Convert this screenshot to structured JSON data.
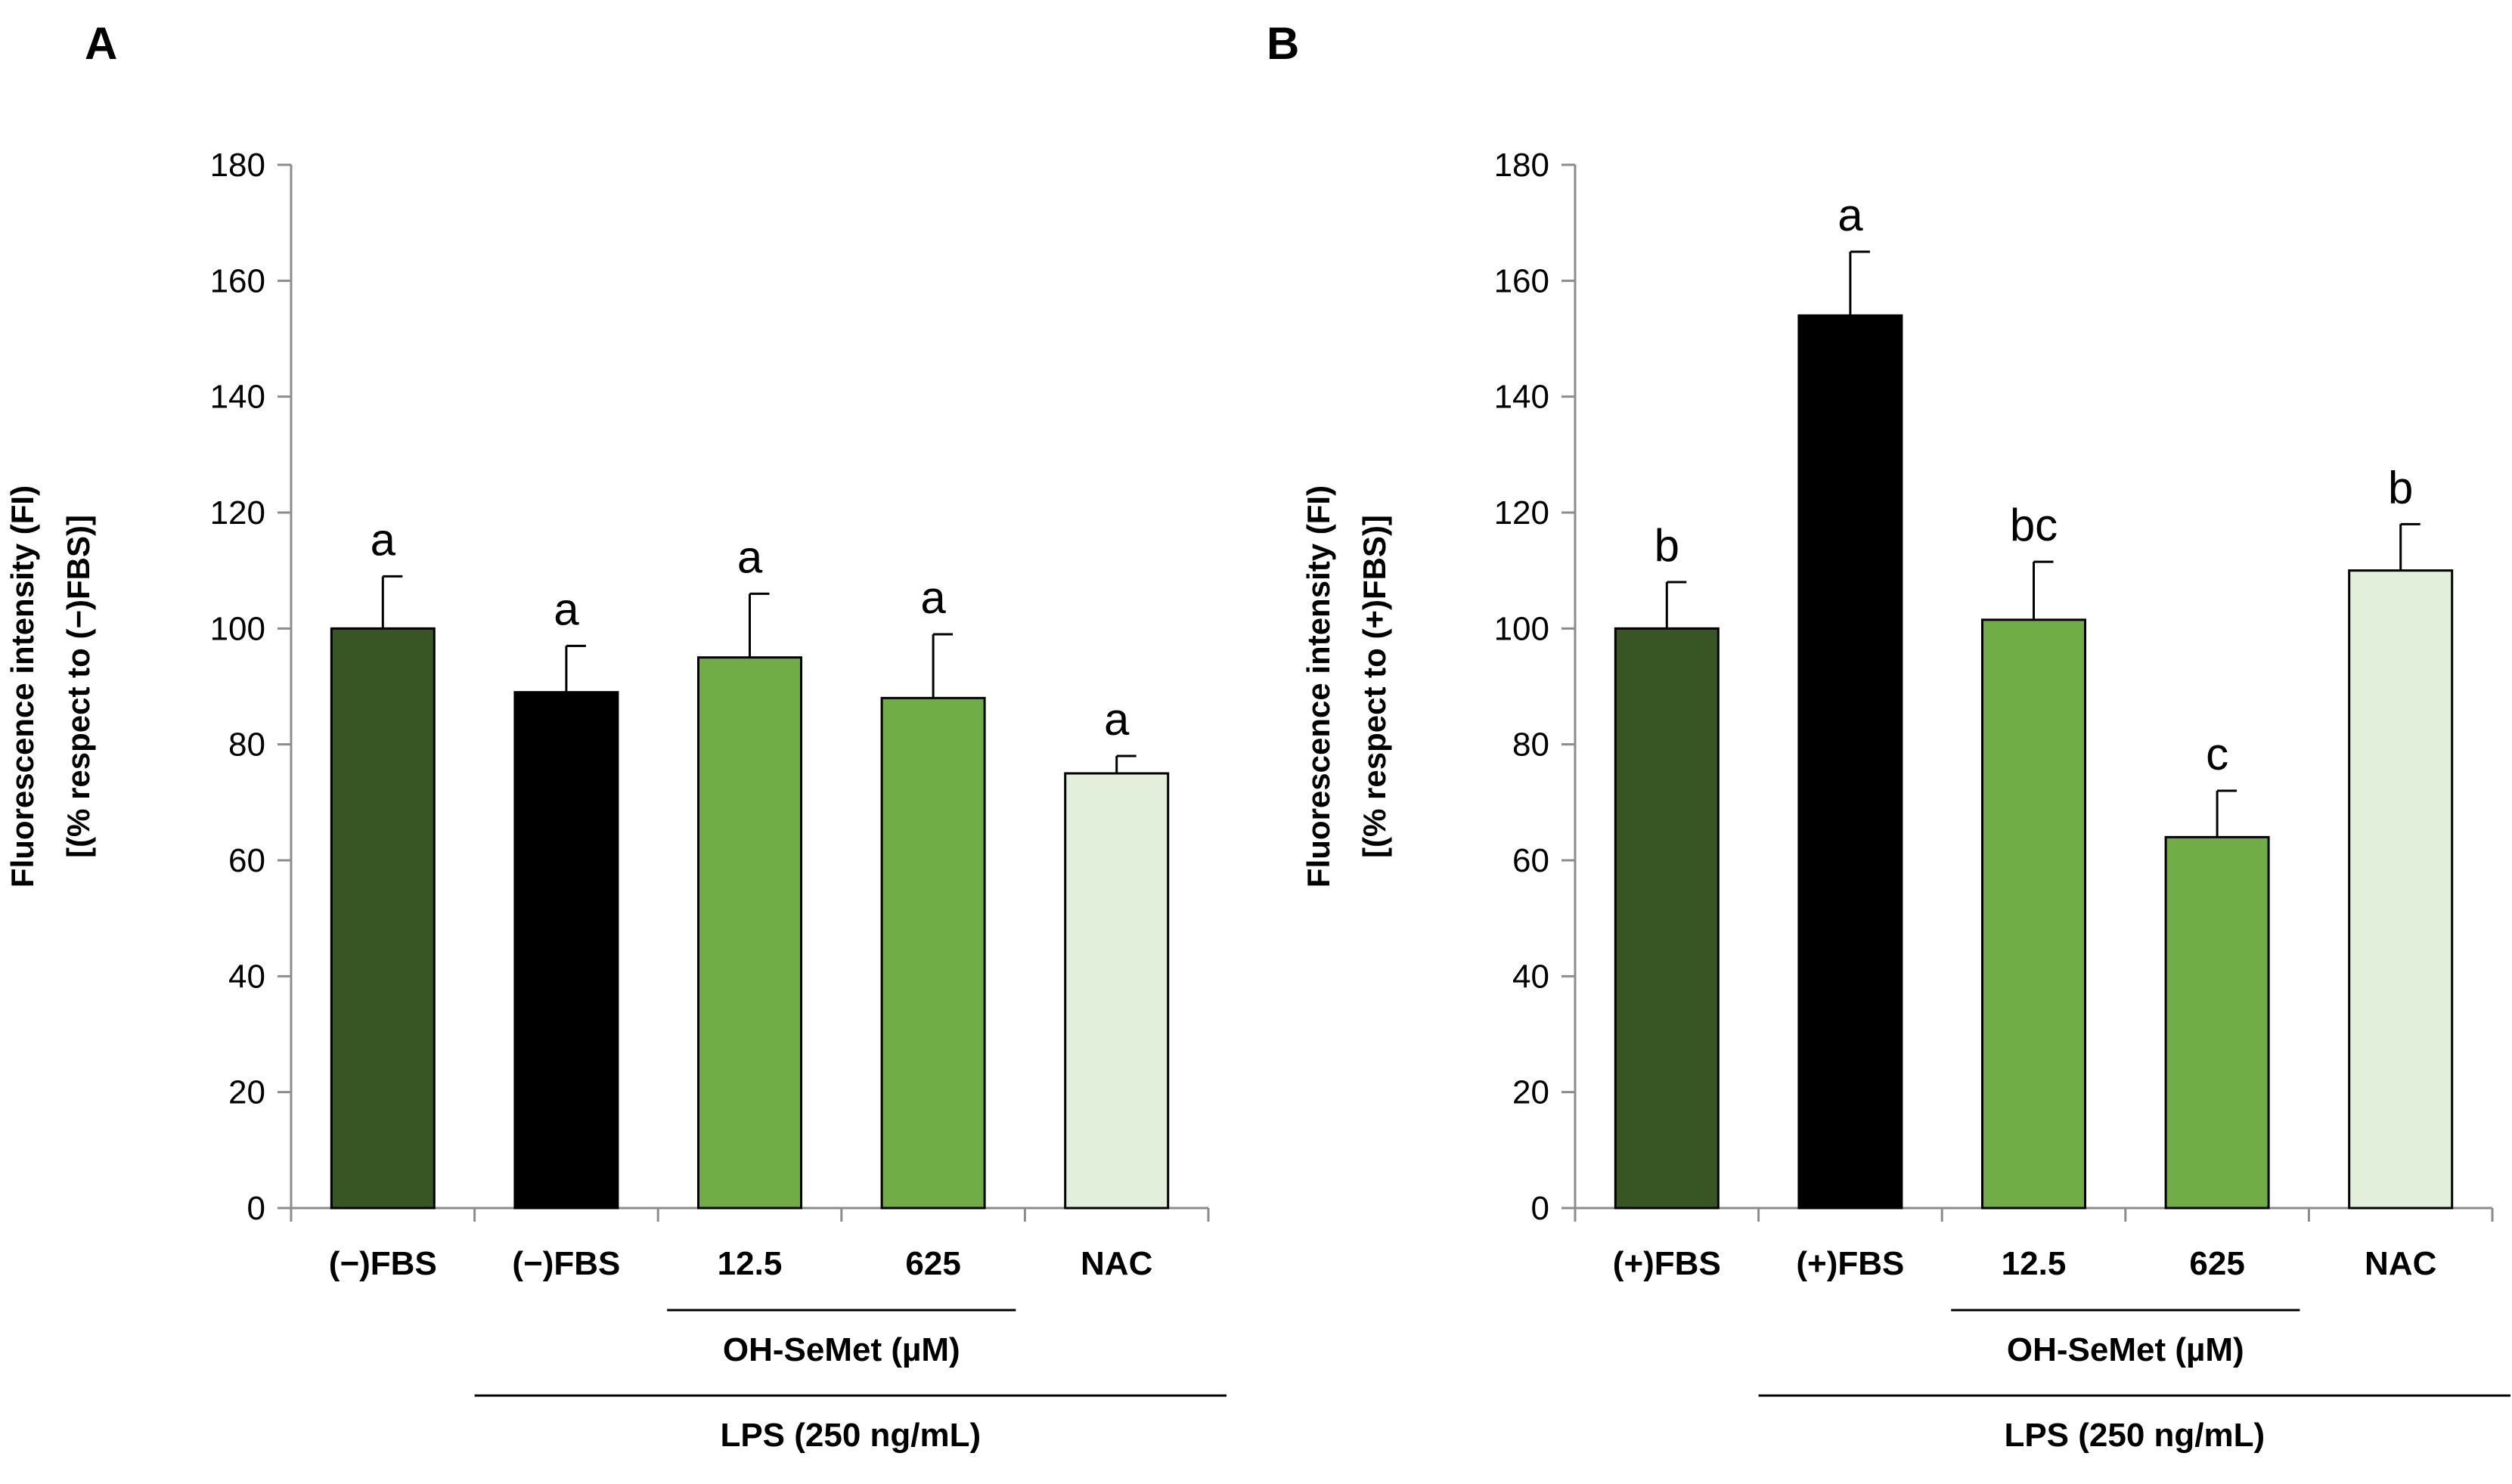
{
  "figure": {
    "panels": [
      "A",
      "B"
    ]
  },
  "chart_data": [
    {
      "panel": "A",
      "type": "bar",
      "title": "",
      "ylabel_line1": "Fluorescence intensity (FI)",
      "ylabel_line2": "[(% respect to (−)FBS)]",
      "xlabel": "",
      "ylim": [
        0,
        180
      ],
      "yticks": [
        0,
        20,
        40,
        60,
        80,
        100,
        120,
        140,
        160,
        180
      ],
      "categories": [
        "(−)FBS",
        "(−)FBS",
        "12.5",
        "625",
        "NAC"
      ],
      "values": [
        100,
        89,
        95,
        88,
        75
      ],
      "errors": [
        9,
        8,
        11,
        11,
        3
      ],
      "significance": [
        "a",
        "a",
        "a",
        "a",
        "a"
      ],
      "colors": [
        "#375623",
        "#000000",
        "#70ad47",
        "#70ad47",
        "#e2efda"
      ],
      "group_labels": [
        {
          "label": "OH-SeMet (µM)",
          "from": 2,
          "to": 3
        },
        {
          "label": "LPS (250 ng/mL)",
          "from": 1,
          "to": 4
        }
      ],
      "grid": false
    },
    {
      "panel": "B",
      "type": "bar",
      "title": "",
      "ylabel_line1": "Fluorescence intensity (FI)",
      "ylabel_line2": "[(% respect to (+)FBS)]",
      "xlabel": "",
      "ylim": [
        0,
        180
      ],
      "yticks": [
        0,
        20,
        40,
        60,
        80,
        100,
        120,
        140,
        160,
        180
      ],
      "categories": [
        "(+)FBS",
        "(+)FBS",
        "12.5",
        "625",
        "NAC"
      ],
      "values": [
        100,
        154,
        101.5,
        64,
        110
      ],
      "errors": [
        8,
        11,
        10,
        8,
        8
      ],
      "significance": [
        "b",
        "a",
        "bc",
        "c",
        "b"
      ],
      "colors": [
        "#375623",
        "#000000",
        "#70ad47",
        "#70ad47",
        "#e2efda"
      ],
      "group_labels": [
        {
          "label": "OH-SeMet (µM)",
          "from": 2,
          "to": 3
        },
        {
          "label": "LPS (250 ng/mL)",
          "from": 1,
          "to": 4
        }
      ],
      "grid": false
    }
  ]
}
